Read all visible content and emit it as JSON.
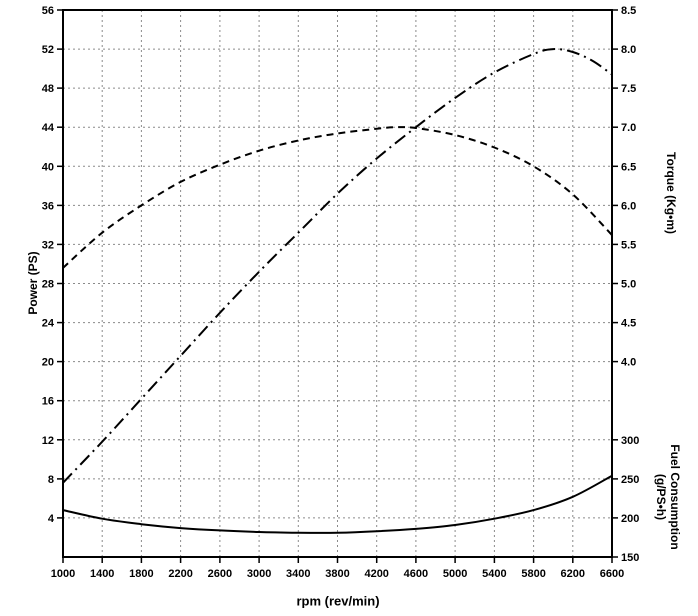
{
  "chart_data": {
    "type": "line",
    "title": "",
    "xlabel": "rpm (rev/min)",
    "xlim": [
      1000,
      6600
    ],
    "x_ticks": [
      1000,
      1400,
      1800,
      2200,
      2600,
      3000,
      3400,
      3800,
      4200,
      4600,
      5000,
      5400,
      5800,
      6200,
      6600
    ],
    "grid": true,
    "legend": "none",
    "left_axis": {
      "label": "Power (PS)",
      "lim": [
        0,
        56
      ],
      "tick_step": 4,
      "ticks": [
        56,
        52,
        48,
        44,
        40,
        36,
        32,
        28,
        24,
        20,
        16,
        12,
        8,
        4
      ]
    },
    "torque_axis": {
      "label": "Torque (Kg•m)",
      "ticks": [
        "8.5",
        "8.0",
        "7.5",
        "7.0",
        "6.5",
        "6.0",
        "5.5",
        "5.0",
        "4.5",
        "4.0"
      ],
      "left_equiv_offset": 1.5,
      "left_per_unit": 8
    },
    "fuel_axis": {
      "label_line1": "Fuel Consumption",
      "label_line2": "(g/PS•h)",
      "ticks": [
        300,
        250,
        200,
        150
      ],
      "left_equiv_offset": 150,
      "left_per_unit": 0.08
    },
    "series": [
      {
        "name": "power",
        "axis": "left",
        "style": "dashdot",
        "unit": "PS",
        "points": [
          [
            1000,
            7.6
          ],
          [
            1400,
            11.8
          ],
          [
            1800,
            16.2
          ],
          [
            2200,
            20.6
          ],
          [
            2600,
            25.0
          ],
          [
            3000,
            29.2
          ],
          [
            3400,
            33.2
          ],
          [
            3800,
            37.2
          ],
          [
            4200,
            40.8
          ],
          [
            4600,
            44.0
          ],
          [
            5000,
            47.0
          ],
          [
            5400,
            49.6
          ],
          [
            5800,
            51.5
          ],
          [
            6000,
            52.0
          ],
          [
            6200,
            51.7
          ],
          [
            6400,
            50.8
          ],
          [
            6600,
            49.4
          ]
        ]
      },
      {
        "name": "torque",
        "axis": "torque",
        "style": "dashed",
        "unit": "Kg•m",
        "points": [
          [
            1000,
            5.2
          ],
          [
            1400,
            5.65
          ],
          [
            1800,
            6.0
          ],
          [
            2200,
            6.3
          ],
          [
            2600,
            6.52
          ],
          [
            3000,
            6.7
          ],
          [
            3400,
            6.83
          ],
          [
            3800,
            6.92
          ],
          [
            4200,
            6.98
          ],
          [
            4400,
            7.0
          ],
          [
            4600,
            6.99
          ],
          [
            5000,
            6.9
          ],
          [
            5400,
            6.74
          ],
          [
            5800,
            6.5
          ],
          [
            6200,
            6.14
          ],
          [
            6600,
            5.62
          ]
        ]
      },
      {
        "name": "fuel_consumption",
        "axis": "fuel",
        "style": "solid",
        "unit": "g/PS•h",
        "points": [
          [
            1000,
            210
          ],
          [
            1400,
            199
          ],
          [
            1800,
            192
          ],
          [
            2200,
            187
          ],
          [
            2600,
            184
          ],
          [
            3000,
            182
          ],
          [
            3400,
            181
          ],
          [
            3800,
            181
          ],
          [
            4200,
            183
          ],
          [
            4600,
            186
          ],
          [
            5000,
            191
          ],
          [
            5400,
            199
          ],
          [
            5800,
            210
          ],
          [
            6200,
            227
          ],
          [
            6600,
            254
          ]
        ]
      }
    ],
    "colors": {
      "curve": "#000000",
      "grid": "#8a8a8a",
      "axis": "#000000",
      "background": "#ffffff"
    }
  }
}
